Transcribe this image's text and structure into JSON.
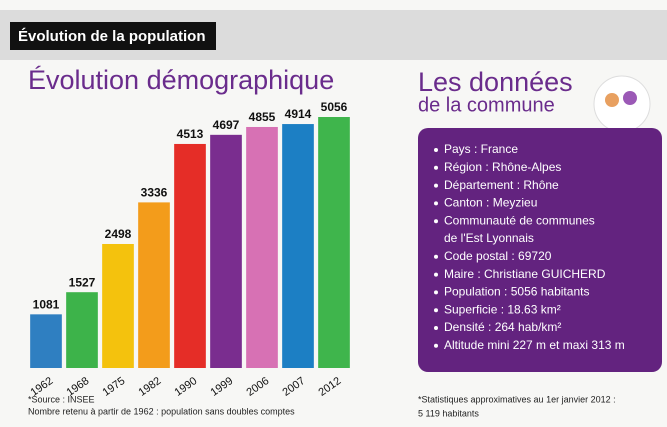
{
  "header": {
    "title": "Évolution de la population"
  },
  "chart_data": {
    "type": "bar",
    "title": "Évolution démographique",
    "categories": [
      "1962",
      "1968",
      "1975",
      "1982",
      "1990",
      "1999",
      "2006",
      "2007",
      "2012"
    ],
    "values": [
      1081,
      1527,
      2498,
      3336,
      4513,
      4697,
      4855,
      4914,
      5056
    ],
    "colors": [
      "#2f7fc1",
      "#3db34a",
      "#f4c20d",
      "#f39c1b",
      "#e52d27",
      "#7a2d8f",
      "#d771b4",
      "#1c7fc4",
      "#3fb54c"
    ],
    "ylim": [
      0,
      5600
    ],
    "notes": [
      "*Source : INSEE",
      "Nombre retenu à partir de 1962 : population sans doubles comptes"
    ]
  },
  "commune": {
    "title": "Les données",
    "subtitle": "de la commune",
    "items": [
      "Pays : France",
      "Région : Rhône-Alpes",
      "Département : Rhône",
      "Canton : Meyzieu",
      "Communauté de communes",
      "de l'Est Lyonnais",
      "Code postal : 69720",
      "Maire : Christiane GUICHERD",
      "Population : 5056 habitants",
      "Superficie : 18.63 km²",
      "Densité : 264 hab/km²",
      "Altitude mini 227 m et maxi 313 m"
    ],
    "bullets": [
      true,
      true,
      true,
      true,
      true,
      false,
      true,
      true,
      true,
      true,
      true,
      true
    ],
    "notes": [
      "*Statistiques approximatives au 1er janvier 2012 :",
      "5 119 habitants"
    ]
  }
}
